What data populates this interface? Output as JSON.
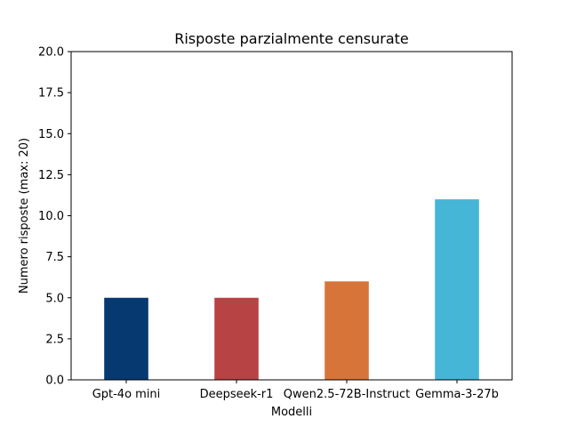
{
  "chart_data": {
    "type": "bar",
    "title": "Risposte parzialmente censurate",
    "xlabel": "Modelli",
    "ylabel": "Numero risposte (max: 20)",
    "categories": [
      "Gpt-4o mini",
      "Deepseek-r1",
      "Qwen2.5-72B-Instruct",
      "Gemma-3-27b"
    ],
    "values": [
      5,
      5,
      6,
      11
    ],
    "colors": [
      "#063970",
      "#b84345",
      "#d6743a",
      "#46b6d6"
    ],
    "ylim": [
      0,
      20
    ],
    "yticks": [
      0.0,
      2.5,
      5.0,
      7.5,
      10.0,
      12.5,
      15.0,
      17.5,
      20.0
    ],
    "ytick_labels": [
      "0.0",
      "2.5",
      "5.0",
      "7.5",
      "10.0",
      "12.5",
      "15.0",
      "17.5",
      "20.0"
    ],
    "grid": false,
    "legend": "none"
  }
}
